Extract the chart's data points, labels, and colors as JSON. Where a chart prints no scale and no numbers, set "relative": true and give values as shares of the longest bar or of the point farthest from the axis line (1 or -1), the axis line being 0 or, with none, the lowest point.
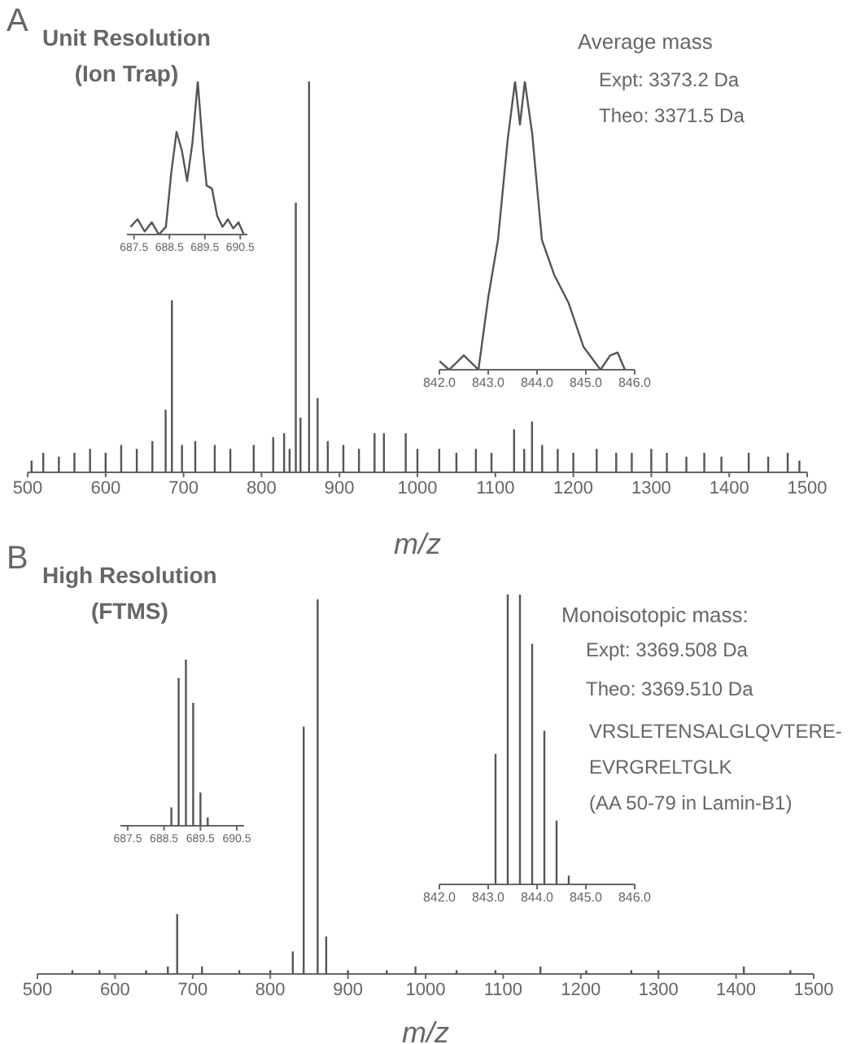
{
  "chart_data": [
    {
      "type": "bar",
      "title": "A",
      "subtitle": "Unit Resolution\n(Ion Trap)",
      "xlabel": "m/z",
      "relative": true,
      "tick_labels": "x",
      "color": "#555555",
      "annotations": [
        "Average mass",
        "Expt: 3373.2 Da",
        "Theo: 3371.5 Da"
      ],
      "x": [
        505,
        520,
        540,
        560,
        580,
        600,
        620,
        640,
        660,
        677,
        685,
        698,
        715,
        740,
        760,
        790,
        815,
        829,
        836,
        844,
        850,
        861,
        872,
        885,
        905,
        925,
        945,
        957,
        985,
        1000,
        1028,
        1050,
        1075,
        1095,
        1124,
        1137,
        1147,
        1160,
        1180,
        1200,
        1230,
        1255,
        1275,
        1300,
        1320,
        1345,
        1368,
        1390,
        1425,
        1450,
        1475,
        1490
      ],
      "values": [
        0.03,
        0.05,
        0.04,
        0.05,
        0.06,
        0.05,
        0.07,
        0.06,
        0.08,
        0.16,
        0.44,
        0.07,
        0.08,
        0.07,
        0.06,
        0.07,
        0.09,
        0.1,
        0.06,
        0.69,
        0.14,
        1,
        0.19,
        0.08,
        0.07,
        0.06,
        0.1,
        0.1,
        0.1,
        0.06,
        0.06,
        0.05,
        0.06,
        0.05,
        0.11,
        0.06,
        0.13,
        0.07,
        0.06,
        0.05,
        0.06,
        0.05,
        0.05,
        0.06,
        0.05,
        0.04,
        0.05,
        0.04,
        0.05,
        0.04,
        0.05,
        0.03
      ],
      "xlim": [
        500,
        1500
      ],
      "xticks": [
        500,
        600,
        700,
        800,
        900,
        1000,
        1100,
        1200,
        1300,
        1400,
        1500
      ]
    },
    {
      "type": "line",
      "relative": true,
      "tick_labels": "x",
      "color": "#555555",
      "x": [
        687.4,
        687.6,
        687.8,
        688.0,
        688.2,
        688.4,
        688.55,
        688.7,
        688.85,
        689.0,
        689.15,
        689.3,
        689.45,
        689.55,
        689.7,
        689.85,
        690.0,
        690.15,
        690.3,
        690.45,
        690.6
      ],
      "values": [
        0.05,
        0.1,
        0.02,
        0.08,
        0,
        0.05,
        0.4,
        0.67,
        0.55,
        0.35,
        0.6,
        1,
        0.55,
        0.32,
        0.3,
        0.12,
        0.05,
        0.1,
        0.04,
        0.08,
        0
      ],
      "xlim": [
        687.3,
        690.7
      ],
      "xticks": [
        687.5,
        688.5,
        689.5,
        690.5
      ]
    },
    {
      "type": "line",
      "relative": true,
      "tick_labels": "x",
      "color": "#555555",
      "x": [
        842.0,
        842.2,
        842.5,
        842.8,
        843.0,
        843.2,
        843.4,
        843.55,
        843.65,
        843.75,
        843.9,
        844.1,
        844.35,
        844.65,
        844.95,
        845.3,
        845.5,
        845.65,
        845.8
      ],
      "values": [
        0.03,
        0,
        0.05,
        0,
        0.25,
        0.45,
        0.8,
        1,
        0.85,
        1,
        0.82,
        0.45,
        0.33,
        0.23,
        0.08,
        0,
        0.05,
        0.06,
        0
      ],
      "xlim": [
        842,
        846
      ],
      "xticks": [
        {
          "value": 842,
          "label": "842.0"
        },
        {
          "value": 843,
          "label": "843.0"
        },
        {
          "value": 844,
          "label": "844.0"
        },
        {
          "value": 845,
          "label": "845.0"
        },
        {
          "value": 846,
          "label": "846.0"
        }
      ]
    },
    {
      "type": "bar",
      "title": "B",
      "subtitle": "High Resolution\n(FTMS)",
      "xlabel": "m/z",
      "relative": true,
      "tick_labels": "x",
      "color": "#555555",
      "annotations": [
        "Monoisotopic mass:",
        "Expt: 3369.508 Da",
        "Theo: 3369.510 Da",
        "VRSLETENSALGLQVTERE-",
        "EVRGRELTGLK",
        "(AA 50-79 in Lamin-B1)"
      ],
      "x": [
        545,
        580,
        640,
        668,
        680,
        712,
        760,
        800,
        829,
        843,
        861,
        872,
        900,
        950,
        987,
        1040,
        1090,
        1148,
        1207,
        1265,
        1300,
        1410,
        1470
      ],
      "values": [
        0.01,
        0.01,
        0.01,
        0.02,
        0.16,
        0.02,
        0.01,
        0.01,
        0.06,
        0.66,
        1,
        0.1,
        0.01,
        0.01,
        0.02,
        0.01,
        0.01,
        0.02,
        0.01,
        0.01,
        0.01,
        0.02,
        0.01
      ],
      "xlim": [
        500,
        1500
      ],
      "xticks": [
        500,
        600,
        700,
        800,
        900,
        1000,
        1100,
        1200,
        1300,
        1400,
        1500
      ]
    },
    {
      "type": "bar",
      "relative": true,
      "tick_labels": "x",
      "color": "#555555",
      "x": [
        688.7,
        688.9,
        689.1,
        689.3,
        689.5,
        689.7
      ],
      "values": [
        0.11,
        0.89,
        1,
        0.74,
        0.2,
        0.05
      ],
      "xlim": [
        687.3,
        690.7
      ],
      "xticks": [
        687.5,
        688.5,
        689.5,
        690.5
      ]
    },
    {
      "type": "bar",
      "relative": true,
      "tick_labels": "x",
      "color": "#555555",
      "x": [
        843.15,
        843.4,
        843.65,
        843.9,
        844.15,
        844.4,
        844.65
      ],
      "values": [
        0.45,
        1,
        1,
        0.83,
        0.53,
        0.22,
        0.03
      ],
      "xlim": [
        842,
        846
      ],
      "xticks": [
        {
          "value": 842,
          "label": "842.0"
        },
        {
          "value": 843,
          "label": "843.0"
        },
        {
          "value": 844,
          "label": "844.0"
        },
        {
          "value": 845,
          "label": "845.0"
        },
        {
          "value": 846,
          "label": "846.0"
        }
      ]
    }
  ]
}
